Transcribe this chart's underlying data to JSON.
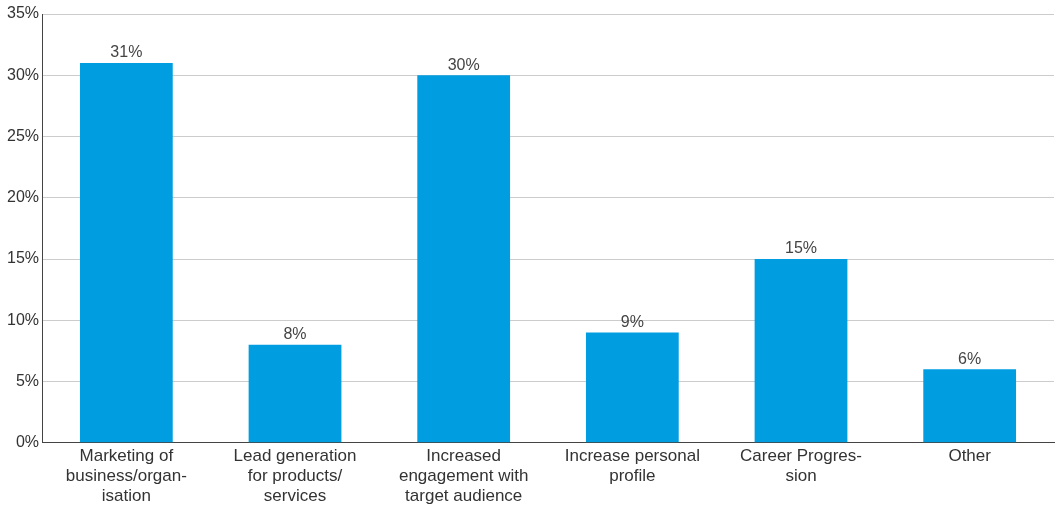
{
  "chart_data": {
    "type": "bar",
    "categories": [
      "Marketing of\nbusiness/organ-\nisation",
      "Lead generation\nfor products/\nservices",
      "Increased\nengagement with\ntarget audience",
      "Increase personal\nprofile",
      "Career Progres-\nsion",
      "Other"
    ],
    "values": [
      31,
      8,
      30,
      9,
      15,
      6
    ],
    "value_labels": [
      "31%",
      "8%",
      "30%",
      "9%",
      "15%",
      "6%"
    ],
    "color": "#009ee0",
    "ylim": [
      0,
      35
    ],
    "yticks": [
      {
        "value": 0,
        "label": "0%"
      },
      {
        "value": 5,
        "label": "5%"
      },
      {
        "value": 10,
        "label": "10%"
      },
      {
        "value": 15,
        "label": "15%"
      },
      {
        "value": 20,
        "label": "20%"
      },
      {
        "value": 25,
        "label": "25%"
      },
      {
        "value": 30,
        "label": "30%"
      },
      {
        "value": 35,
        "label": "35%"
      }
    ],
    "grid": "y"
  }
}
